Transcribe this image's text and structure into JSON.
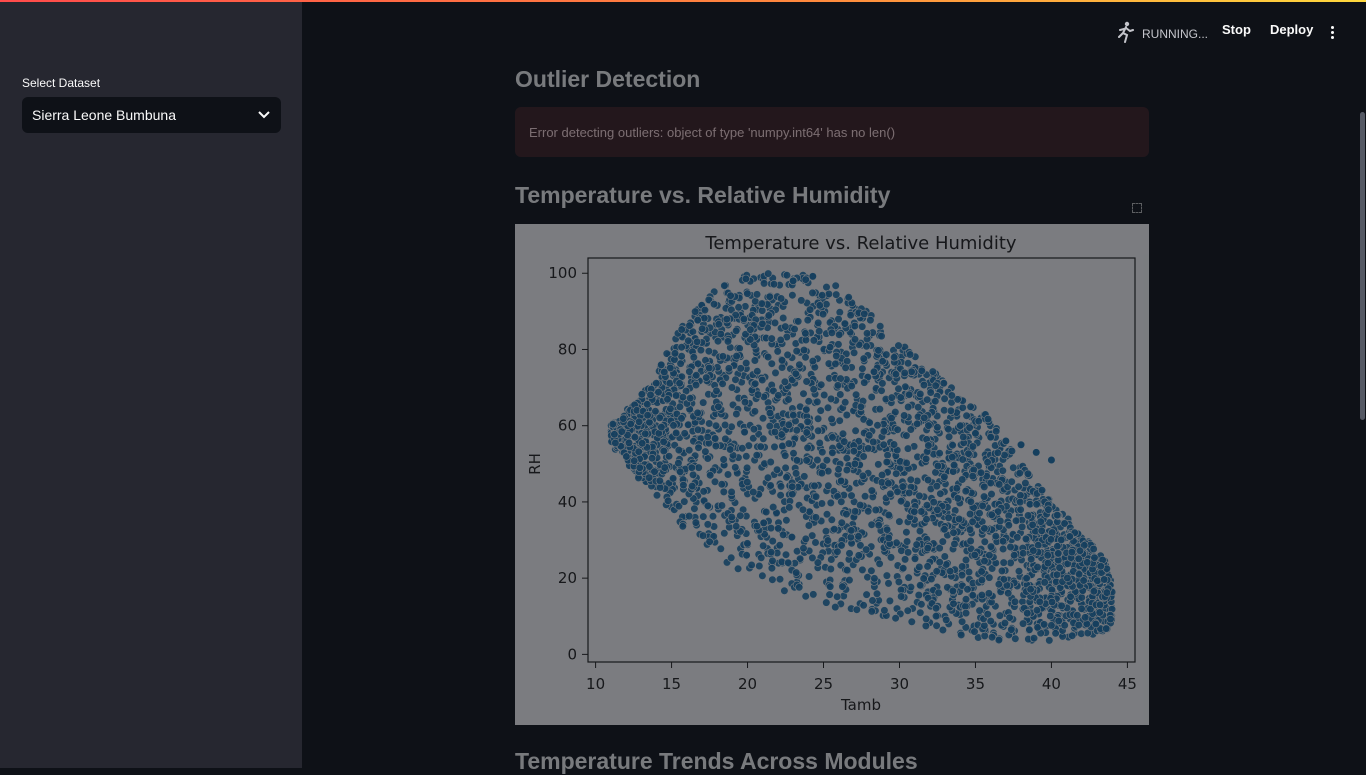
{
  "sidebar": {
    "select_label": "Select Dataset",
    "selected_value": "Sierra Leone Bumbuna"
  },
  "header": {
    "status": "RUNNING...",
    "stop_label": "Stop",
    "deploy_label": "Deploy"
  },
  "main": {
    "outlier_title": "Outlier Detection",
    "error_message": "Error detecting outliers: object of type 'numpy.int64' has no len()",
    "scatter_title": "Temperature vs. Relative Humidity",
    "next_section_title": "Temperature Trends Across Modules"
  },
  "colors": {
    "accent": "#ff4b4b",
    "point": "#1f77b4"
  },
  "chart_data": {
    "type": "scatter",
    "title": "Temperature vs. Relative Humidity",
    "xlabel": "Tamb",
    "ylabel": "RH",
    "xlim": [
      9.5,
      45.5
    ],
    "ylim": [
      -2,
      104
    ],
    "xticks": [
      10,
      15,
      20,
      25,
      30,
      35,
      40,
      45
    ],
    "yticks": [
      0,
      20,
      40,
      60,
      80,
      100
    ],
    "grid": false,
    "envelope_upper": [
      [
        11,
        60
      ],
      [
        12,
        64
      ],
      [
        13,
        68
      ],
      [
        14,
        74
      ],
      [
        15,
        82
      ],
      [
        16,
        88
      ],
      [
        17,
        92
      ],
      [
        18,
        96
      ],
      [
        19,
        98
      ],
      [
        20,
        100
      ],
      [
        22,
        100
      ],
      [
        24,
        100
      ],
      [
        26,
        97
      ],
      [
        28,
        90
      ],
      [
        30,
        82
      ],
      [
        32,
        75
      ],
      [
        34,
        68
      ],
      [
        36,
        62
      ],
      [
        38,
        50
      ],
      [
        40,
        40
      ],
      [
        42,
        32
      ],
      [
        43.5,
        25
      ],
      [
        44,
        18
      ]
    ],
    "envelope_lower": [
      [
        11,
        55
      ],
      [
        12,
        50
      ],
      [
        13,
        45
      ],
      [
        14,
        40
      ],
      [
        15,
        35
      ],
      [
        17,
        28
      ],
      [
        19,
        22
      ],
      [
        21,
        18
      ],
      [
        23,
        15
      ],
      [
        25,
        13
      ],
      [
        27,
        11
      ],
      [
        29,
        9
      ],
      [
        31,
        7
      ],
      [
        33,
        5
      ],
      [
        35,
        4
      ],
      [
        37,
        3
      ],
      [
        39,
        3
      ],
      [
        41,
        4
      ],
      [
        43,
        5
      ],
      [
        44,
        7
      ]
    ],
    "outlier_points": [
      [
        23,
        98
      ],
      [
        34,
        60
      ],
      [
        35,
        58
      ],
      [
        36,
        57
      ],
      [
        37,
        56
      ],
      [
        38,
        55
      ],
      [
        39,
        53
      ],
      [
        40,
        51
      ]
    ]
  }
}
